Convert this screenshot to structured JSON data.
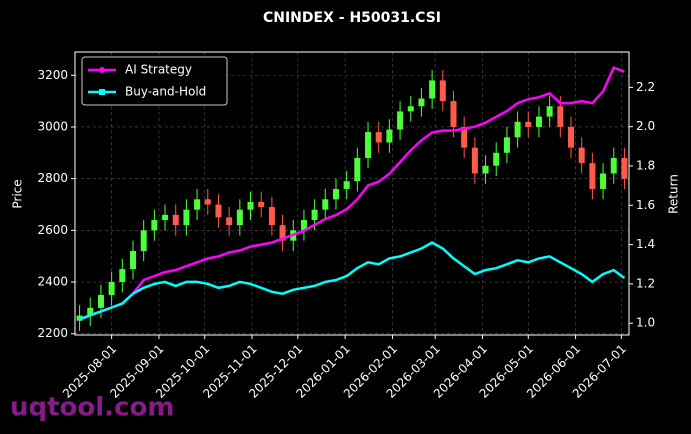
{
  "chart_data": {
    "type": "candlestick",
    "title": "CNINDEX - H50031.CSI",
    "y_label": "Price",
    "y2_label": "Return",
    "watermark": "uqtool.com",
    "grid": true,
    "legend": "upper left",
    "up_color": "#4cff3a",
    "down_color": "#ff5a4a",
    "x": [
      "2025-07-11",
      "2025-07-18",
      "2025-07-25",
      "2025-08-01",
      "2025-08-08",
      "2025-08-15",
      "2025-08-22",
      "2025-08-29",
      "2025-09-05",
      "2025-09-12",
      "2025-09-19",
      "2025-09-26",
      "2025-10-03",
      "2025-10-10",
      "2025-10-17",
      "2025-10-24",
      "2025-10-31",
      "2025-11-07",
      "2025-11-14",
      "2025-11-21",
      "2025-11-28",
      "2025-12-05",
      "2025-12-12",
      "2025-12-19",
      "2025-12-26",
      "2026-01-02",
      "2026-01-09",
      "2026-01-16",
      "2026-01-23",
      "2026-01-30",
      "2026-02-06",
      "2026-02-13",
      "2026-02-20",
      "2026-02-27",
      "2026-03-06",
      "2026-03-13",
      "2026-03-20",
      "2026-03-27",
      "2026-04-03",
      "2026-04-10",
      "2026-04-17",
      "2026-04-24",
      "2026-05-01",
      "2026-05-08",
      "2026-05-15",
      "2026-05-22",
      "2026-05-29",
      "2026-06-05",
      "2026-06-12",
      "2026-06-19",
      "2026-06-26",
      "2026-07-03"
    ],
    "open": [
      2250,
      2270,
      2300,
      2350,
      2400,
      2450,
      2520,
      2600,
      2640,
      2660,
      2620,
      2680,
      2720,
      2700,
      2650,
      2620,
      2680,
      2710,
      2690,
      2620,
      2560,
      2600,
      2640,
      2680,
      2720,
      2760,
      2790,
      2880,
      2980,
      2940,
      2990,
      3060,
      3080,
      3110,
      3180,
      3100,
      3000,
      2920,
      2820,
      2850,
      2900,
      2960,
      3020,
      3000,
      3040,
      3080,
      3000,
      2920,
      2860,
      2760,
      2820,
      2880
    ],
    "high": [
      2310,
      2340,
      2390,
      2440,
      2490,
      2560,
      2640,
      2680,
      2700,
      2700,
      2720,
      2760,
      2760,
      2740,
      2690,
      2720,
      2750,
      2750,
      2730,
      2660,
      2640,
      2680,
      2720,
      2760,
      2800,
      2830,
      2920,
      3020,
      3020,
      3030,
      3100,
      3120,
      3150,
      3220,
      3220,
      3140,
      3040,
      2960,
      2890,
      2940,
      3000,
      3060,
      3060,
      3080,
      3120,
      3120,
      3040,
      2960,
      2900,
      2860,
      2920,
      2920
    ],
    "low": [
      2210,
      2230,
      2260,
      2310,
      2360,
      2410,
      2480,
      2560,
      2600,
      2580,
      2580,
      2640,
      2660,
      2610,
      2580,
      2580,
      2640,
      2650,
      2580,
      2520,
      2520,
      2560,
      2600,
      2640,
      2680,
      2720,
      2750,
      2840,
      2900,
      2900,
      2950,
      3020,
      3040,
      3070,
      3060,
      2960,
      2880,
      2780,
      2780,
      2810,
      2860,
      2920,
      2960,
      2960,
      3000,
      2960,
      2880,
      2820,
      2720,
      2720,
      2780,
      2760
    ],
    "close": [
      2270,
      2300,
      2350,
      2400,
      2450,
      2520,
      2600,
      2640,
      2660,
      2620,
      2680,
      2720,
      2700,
      2650,
      2620,
      2680,
      2710,
      2690,
      2620,
      2560,
      2600,
      2640,
      2680,
      2720,
      2760,
      2790,
      2880,
      2980,
      2940,
      2990,
      3060,
      3080,
      3110,
      3180,
      3100,
      3000,
      2920,
      2820,
      2850,
      2900,
      2960,
      3020,
      3000,
      3040,
      3080,
      3000,
      2920,
      2860,
      2760,
      2820,
      2880,
      2800
    ],
    "series": [
      {
        "name": "AI Strategy",
        "color": "#ff00ff",
        "axis": "y2",
        "values": [
          1.02,
          1.04,
          1.06,
          1.08,
          1.1,
          1.15,
          1.22,
          1.24,
          1.26,
          1.27,
          1.29,
          1.31,
          1.33,
          1.34,
          1.36,
          1.37,
          1.39,
          1.4,
          1.41,
          1.43,
          1.45,
          1.47,
          1.5,
          1.53,
          1.55,
          1.58,
          1.63,
          1.7,
          1.72,
          1.76,
          1.82,
          1.88,
          1.93,
          1.97,
          1.98,
          1.98,
          1.99,
          2.0,
          2.02,
          2.05,
          2.08,
          2.12,
          2.14,
          2.15,
          2.17,
          2.12,
          2.12,
          2.13,
          2.12,
          2.18,
          2.3,
          2.28
        ]
      },
      {
        "name": "Buy-and-Hold",
        "color": "#00ffff",
        "axis": "y2",
        "values": [
          1.02,
          1.04,
          1.06,
          1.08,
          1.1,
          1.15,
          1.18,
          1.2,
          1.21,
          1.19,
          1.21,
          1.21,
          1.2,
          1.18,
          1.19,
          1.21,
          1.2,
          1.18,
          1.16,
          1.15,
          1.17,
          1.18,
          1.19,
          1.21,
          1.22,
          1.24,
          1.28,
          1.31,
          1.3,
          1.33,
          1.34,
          1.36,
          1.38,
          1.41,
          1.38,
          1.33,
          1.29,
          1.25,
          1.27,
          1.28,
          1.3,
          1.32,
          1.31,
          1.33,
          1.34,
          1.31,
          1.28,
          1.25,
          1.21,
          1.25,
          1.27,
          1.23
        ]
      }
    ],
    "xlim": [
      "2025-07-08",
      "2026-07-06"
    ],
    "xticks": [
      "2025-08-01",
      "2025-09-01",
      "2025-10-01",
      "2025-11-01",
      "2025-12-01",
      "2026-01-01",
      "2026-02-01",
      "2026-03-01",
      "2026-04-01",
      "2026-05-01",
      "2026-06-01",
      "2026-07-01"
    ],
    "ylim": [
      2195,
      3290
    ],
    "yticks": [
      2200,
      2400,
      2600,
      2800,
      3000,
      3200
    ],
    "y2lim": [
      0.94,
      2.38
    ],
    "y2ticks": [
      {
        "value": 1,
        "label": "1.0"
      },
      1.2,
      1.4,
      1.6,
      1.8,
      {
        "value": 2,
        "label": "2.0"
      },
      2.2
    ]
  }
}
